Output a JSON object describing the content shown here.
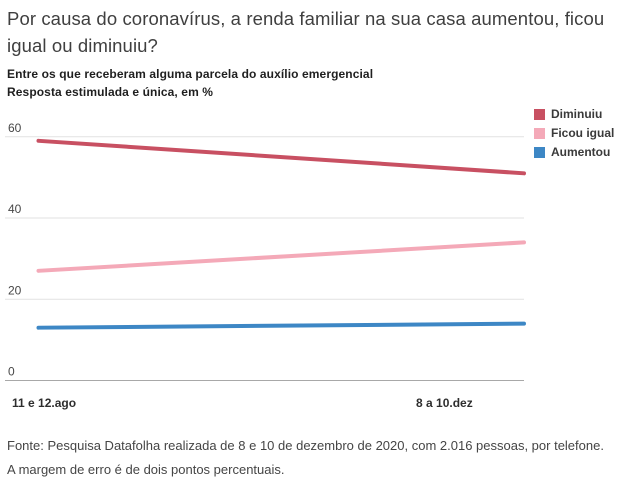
{
  "header": {
    "title": "Por causa do coronavírus, a renda familiar na sua casa aumentou, ficou igual ou diminuiu?",
    "subtitle_line1": "Entre os que receberam alguma parcela do auxílio emergencial",
    "subtitle_line2": "Resposta estimulada e única, em %"
  },
  "chart_data": {
    "type": "line",
    "x": [
      "11 e 12.ago",
      "8 a 10.dez"
    ],
    "series": [
      {
        "name": "Diminuiu",
        "values": [
          59,
          51
        ],
        "color": "#c85062"
      },
      {
        "name": "Ficou igual",
        "values": [
          27,
          34
        ],
        "color": "#f4a9b8"
      },
      {
        "name": "Aumentou",
        "values": [
          13,
          14
        ],
        "color": "#3d87c5"
      }
    ],
    "yticks": [
      0,
      20,
      40,
      60
    ],
    "ylim": [
      0,
      66
    ],
    "unit": "%",
    "grid": true,
    "legend_position": "top-right",
    "colors": {
      "gridline": "#e2e2e2",
      "axis_line": "#a8a8a8",
      "tick_text": "#474747"
    }
  },
  "footer": {
    "source": "Fonte: Pesquisa Datafolha realizada de 8 e 10 de dezembro de 2020, com 2.016 pessoas, por telefone. A margem de erro é de dois pontos percentuais."
  }
}
